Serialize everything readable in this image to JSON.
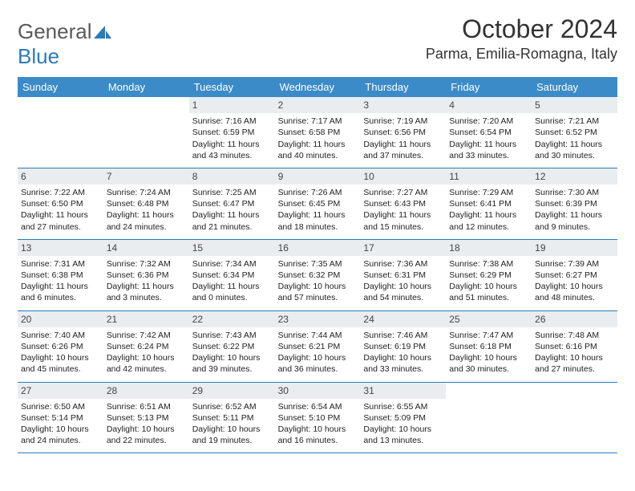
{
  "logo": {
    "word1": "General",
    "word2": "Blue"
  },
  "title": "October 2024",
  "location": "Parma, Emilia-Romagna, Italy",
  "colors": {
    "header_bg": "#3b8bc8",
    "header_text": "#ffffff",
    "daynum_bg": "#e9edf0",
    "rule": "#2b7bb9",
    "logo_gray": "#5a5a5a",
    "logo_blue": "#2b7bb9"
  },
  "day_names": [
    "Sunday",
    "Monday",
    "Tuesday",
    "Wednesday",
    "Thursday",
    "Friday",
    "Saturday"
  ],
  "weeks": [
    [
      null,
      null,
      {
        "n": "1",
        "sr": "Sunrise: 7:16 AM",
        "ss": "Sunset: 6:59 PM",
        "d1": "Daylight: 11 hours",
        "d2": "and 43 minutes."
      },
      {
        "n": "2",
        "sr": "Sunrise: 7:17 AM",
        "ss": "Sunset: 6:58 PM",
        "d1": "Daylight: 11 hours",
        "d2": "and 40 minutes."
      },
      {
        "n": "3",
        "sr": "Sunrise: 7:19 AM",
        "ss": "Sunset: 6:56 PM",
        "d1": "Daylight: 11 hours",
        "d2": "and 37 minutes."
      },
      {
        "n": "4",
        "sr": "Sunrise: 7:20 AM",
        "ss": "Sunset: 6:54 PM",
        "d1": "Daylight: 11 hours",
        "d2": "and 33 minutes."
      },
      {
        "n": "5",
        "sr": "Sunrise: 7:21 AM",
        "ss": "Sunset: 6:52 PM",
        "d1": "Daylight: 11 hours",
        "d2": "and 30 minutes."
      }
    ],
    [
      {
        "n": "6",
        "sr": "Sunrise: 7:22 AM",
        "ss": "Sunset: 6:50 PM",
        "d1": "Daylight: 11 hours",
        "d2": "and 27 minutes."
      },
      {
        "n": "7",
        "sr": "Sunrise: 7:24 AM",
        "ss": "Sunset: 6:48 PM",
        "d1": "Daylight: 11 hours",
        "d2": "and 24 minutes."
      },
      {
        "n": "8",
        "sr": "Sunrise: 7:25 AM",
        "ss": "Sunset: 6:47 PM",
        "d1": "Daylight: 11 hours",
        "d2": "and 21 minutes."
      },
      {
        "n": "9",
        "sr": "Sunrise: 7:26 AM",
        "ss": "Sunset: 6:45 PM",
        "d1": "Daylight: 11 hours",
        "d2": "and 18 minutes."
      },
      {
        "n": "10",
        "sr": "Sunrise: 7:27 AM",
        "ss": "Sunset: 6:43 PM",
        "d1": "Daylight: 11 hours",
        "d2": "and 15 minutes."
      },
      {
        "n": "11",
        "sr": "Sunrise: 7:29 AM",
        "ss": "Sunset: 6:41 PM",
        "d1": "Daylight: 11 hours",
        "d2": "and 12 minutes."
      },
      {
        "n": "12",
        "sr": "Sunrise: 7:30 AM",
        "ss": "Sunset: 6:39 PM",
        "d1": "Daylight: 11 hours",
        "d2": "and 9 minutes."
      }
    ],
    [
      {
        "n": "13",
        "sr": "Sunrise: 7:31 AM",
        "ss": "Sunset: 6:38 PM",
        "d1": "Daylight: 11 hours",
        "d2": "and 6 minutes."
      },
      {
        "n": "14",
        "sr": "Sunrise: 7:32 AM",
        "ss": "Sunset: 6:36 PM",
        "d1": "Daylight: 11 hours",
        "d2": "and 3 minutes."
      },
      {
        "n": "15",
        "sr": "Sunrise: 7:34 AM",
        "ss": "Sunset: 6:34 PM",
        "d1": "Daylight: 11 hours",
        "d2": "and 0 minutes."
      },
      {
        "n": "16",
        "sr": "Sunrise: 7:35 AM",
        "ss": "Sunset: 6:32 PM",
        "d1": "Daylight: 10 hours",
        "d2": "and 57 minutes."
      },
      {
        "n": "17",
        "sr": "Sunrise: 7:36 AM",
        "ss": "Sunset: 6:31 PM",
        "d1": "Daylight: 10 hours",
        "d2": "and 54 minutes."
      },
      {
        "n": "18",
        "sr": "Sunrise: 7:38 AM",
        "ss": "Sunset: 6:29 PM",
        "d1": "Daylight: 10 hours",
        "d2": "and 51 minutes."
      },
      {
        "n": "19",
        "sr": "Sunrise: 7:39 AM",
        "ss": "Sunset: 6:27 PM",
        "d1": "Daylight: 10 hours",
        "d2": "and 48 minutes."
      }
    ],
    [
      {
        "n": "20",
        "sr": "Sunrise: 7:40 AM",
        "ss": "Sunset: 6:26 PM",
        "d1": "Daylight: 10 hours",
        "d2": "and 45 minutes."
      },
      {
        "n": "21",
        "sr": "Sunrise: 7:42 AM",
        "ss": "Sunset: 6:24 PM",
        "d1": "Daylight: 10 hours",
        "d2": "and 42 minutes."
      },
      {
        "n": "22",
        "sr": "Sunrise: 7:43 AM",
        "ss": "Sunset: 6:22 PM",
        "d1": "Daylight: 10 hours",
        "d2": "and 39 minutes."
      },
      {
        "n": "23",
        "sr": "Sunrise: 7:44 AM",
        "ss": "Sunset: 6:21 PM",
        "d1": "Daylight: 10 hours",
        "d2": "and 36 minutes."
      },
      {
        "n": "24",
        "sr": "Sunrise: 7:46 AM",
        "ss": "Sunset: 6:19 PM",
        "d1": "Daylight: 10 hours",
        "d2": "and 33 minutes."
      },
      {
        "n": "25",
        "sr": "Sunrise: 7:47 AM",
        "ss": "Sunset: 6:18 PM",
        "d1": "Daylight: 10 hours",
        "d2": "and 30 minutes."
      },
      {
        "n": "26",
        "sr": "Sunrise: 7:48 AM",
        "ss": "Sunset: 6:16 PM",
        "d1": "Daylight: 10 hours",
        "d2": "and 27 minutes."
      }
    ],
    [
      {
        "n": "27",
        "sr": "Sunrise: 6:50 AM",
        "ss": "Sunset: 5:14 PM",
        "d1": "Daylight: 10 hours",
        "d2": "and 24 minutes."
      },
      {
        "n": "28",
        "sr": "Sunrise: 6:51 AM",
        "ss": "Sunset: 5:13 PM",
        "d1": "Daylight: 10 hours",
        "d2": "and 22 minutes."
      },
      {
        "n": "29",
        "sr": "Sunrise: 6:52 AM",
        "ss": "Sunset: 5:11 PM",
        "d1": "Daylight: 10 hours",
        "d2": "and 19 minutes."
      },
      {
        "n": "30",
        "sr": "Sunrise: 6:54 AM",
        "ss": "Sunset: 5:10 PM",
        "d1": "Daylight: 10 hours",
        "d2": "and 16 minutes."
      },
      {
        "n": "31",
        "sr": "Sunrise: 6:55 AM",
        "ss": "Sunset: 5:09 PM",
        "d1": "Daylight: 10 hours",
        "d2": "and 13 minutes."
      },
      null,
      null
    ]
  ]
}
